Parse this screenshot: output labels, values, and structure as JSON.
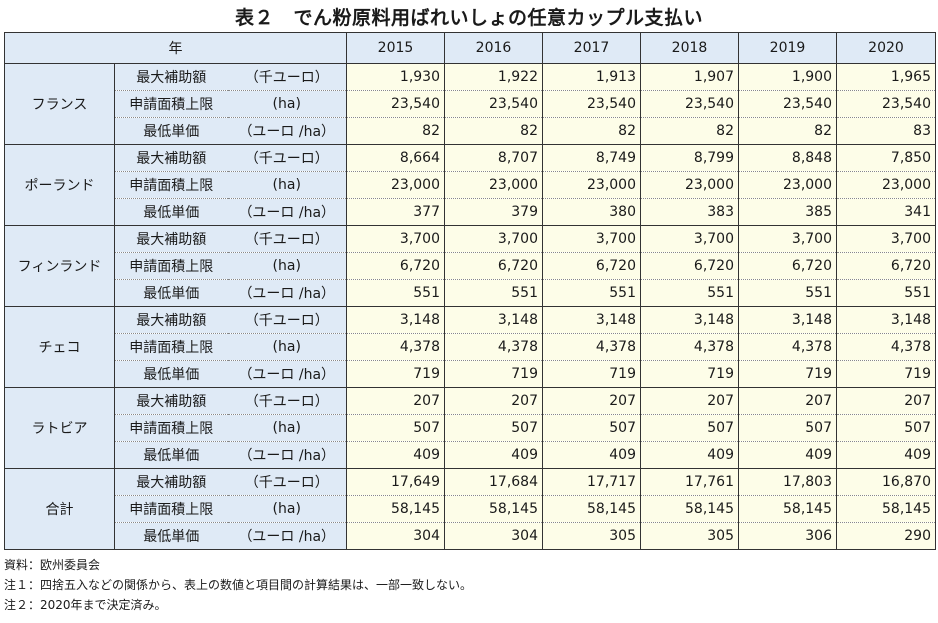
{
  "title": "表２　でん粉原料用ばれいしょの任意カップル支払い",
  "table": {
    "header_label": "年",
    "years": [
      "2015",
      "2016",
      "2017",
      "2018",
      "2019",
      "2020"
    ],
    "countries": [
      {
        "name": "フランス",
        "rows": [
          {
            "metric": "最大補助額",
            "unit": "（千ユーロ）",
            "values": [
              "1,930",
              "1,922",
              "1,913",
              "1,907",
              "1,900",
              "1,965"
            ]
          },
          {
            "metric": "申請面積上限",
            "unit": "(ha)",
            "values": [
              "23,540",
              "23,540",
              "23,540",
              "23,540",
              "23,540",
              "23,540"
            ]
          },
          {
            "metric": "最低単価",
            "unit": "（ユーロ /ha）",
            "values": [
              "82",
              "82",
              "82",
              "82",
              "82",
              "83"
            ]
          }
        ]
      },
      {
        "name": "ポーランド",
        "rows": [
          {
            "metric": "最大補助額",
            "unit": "（千ユーロ）",
            "values": [
              "8,664",
              "8,707",
              "8,749",
              "8,799",
              "8,848",
              "7,850"
            ]
          },
          {
            "metric": "申請面積上限",
            "unit": "(ha)",
            "values": [
              "23,000",
              "23,000",
              "23,000",
              "23,000",
              "23,000",
              "23,000"
            ]
          },
          {
            "metric": "最低単価",
            "unit": "（ユーロ /ha）",
            "values": [
              "377",
              "379",
              "380",
              "383",
              "385",
              "341"
            ]
          }
        ]
      },
      {
        "name": "フィンランド",
        "rows": [
          {
            "metric": "最大補助額",
            "unit": "（千ユーロ）",
            "values": [
              "3,700",
              "3,700",
              "3,700",
              "3,700",
              "3,700",
              "3,700"
            ]
          },
          {
            "metric": "申請面積上限",
            "unit": "(ha)",
            "values": [
              "6,720",
              "6,720",
              "6,720",
              "6,720",
              "6,720",
              "6,720"
            ]
          },
          {
            "metric": "最低単価",
            "unit": "（ユーロ /ha）",
            "values": [
              "551",
              "551",
              "551",
              "551",
              "551",
              "551"
            ]
          }
        ]
      },
      {
        "name": "チェコ",
        "rows": [
          {
            "metric": "最大補助額",
            "unit": "（千ユーロ）",
            "values": [
              "3,148",
              "3,148",
              "3,148",
              "3,148",
              "3,148",
              "3,148"
            ]
          },
          {
            "metric": "申請面積上限",
            "unit": "(ha)",
            "values": [
              "4,378",
              "4,378",
              "4,378",
              "4,378",
              "4,378",
              "4,378"
            ]
          },
          {
            "metric": "最低単価",
            "unit": "（ユーロ /ha）",
            "values": [
              "719",
              "719",
              "719",
              "719",
              "719",
              "719"
            ]
          }
        ]
      },
      {
        "name": "ラトビア",
        "rows": [
          {
            "metric": "最大補助額",
            "unit": "（千ユーロ）",
            "values": [
              "207",
              "207",
              "207",
              "207",
              "207",
              "207"
            ]
          },
          {
            "metric": "申請面積上限",
            "unit": "(ha)",
            "values": [
              "507",
              "507",
              "507",
              "507",
              "507",
              "507"
            ]
          },
          {
            "metric": "最低単価",
            "unit": "（ユーロ /ha）",
            "values": [
              "409",
              "409",
              "409",
              "409",
              "409",
              "409"
            ]
          }
        ]
      },
      {
        "name": "合計",
        "rows": [
          {
            "metric": "最大補助額",
            "unit": "（千ユーロ）",
            "values": [
              "17,649",
              "17,684",
              "17,717",
              "17,761",
              "17,803",
              "16,870"
            ]
          },
          {
            "metric": "申請面積上限",
            "unit": "(ha)",
            "values": [
              "58,145",
              "58,145",
              "58,145",
              "58,145",
              "58,145",
              "58,145"
            ]
          },
          {
            "metric": "最低単価",
            "unit": "（ユーロ /ha）",
            "values": [
              "304",
              "304",
              "305",
              "305",
              "306",
              "290"
            ]
          }
        ]
      }
    ]
  },
  "notes": [
    "資料：欧州委員会",
    "注１：四捨五入などの関係から、表上の数値と項目間の計算結果は、一部一致しない。",
    "注２：2020年まで決定済み。"
  ]
}
